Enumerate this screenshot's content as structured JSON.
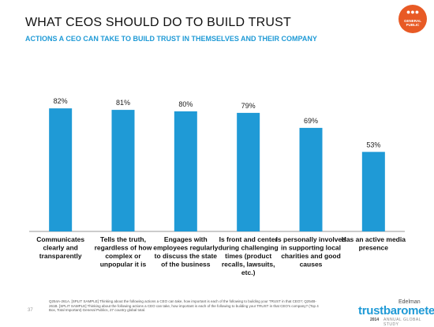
{
  "header": {
    "title": "WHAT CEOS SHOULD DO TO BUILD TRUST",
    "subtitle": "ACTIONS A CEO CAN TAKE TO BUILD TRUST IN THEMSELVES AND THEIR COMPANY"
  },
  "badge": {
    "icon": "people-icon",
    "label_line1": "GENERAL",
    "label_line2": "PUBLIC",
    "color": "#e85a25"
  },
  "chart_data": {
    "type": "bar",
    "categories": [
      [
        "Communicates",
        "clearly and",
        "transparently"
      ],
      [
        "Tells the truth,",
        "regardless of how",
        "complex or",
        "unpopular it is"
      ],
      [
        "Engages with",
        "employees regularly",
        "to discuss the state",
        "of the business"
      ],
      [
        "Is front and center",
        "during challenging",
        "times (product",
        "recalls, lawsuits,",
        "etc.)"
      ],
      [
        "Is personally involved",
        "in supporting local",
        "charities and good",
        "causes"
      ],
      [
        "Has an active media",
        "presence"
      ]
    ],
    "values": [
      82,
      81,
      80,
      79,
      69,
      53
    ],
    "value_labels": [
      "82%",
      "81%",
      "80%",
      "79%",
      "69%",
      "53%"
    ],
    "ylim": [
      0,
      100
    ],
    "bar_color": "#1f9ad6",
    "grid": false,
    "legend": "none"
  },
  "footnote": "Q254A-261A. [SPLIT SAMPLE] Thinking about the following actions a CEO can take, how important is each of the following to building your TRUST in that CEO?; Q254B-261B. [SPLIT SAMPLE] Thinking about the following actions a CEO can take, how important is each of the following to building your TRUST in that CEO's company? (Top 4 Box, Total Important) General Publics, 27 country global total.",
  "page_number": "37",
  "brand": {
    "company": "Edelman",
    "product": "trustbarometer",
    "year": "2014",
    "study": "ANNUAL GLOBAL STUDY"
  }
}
